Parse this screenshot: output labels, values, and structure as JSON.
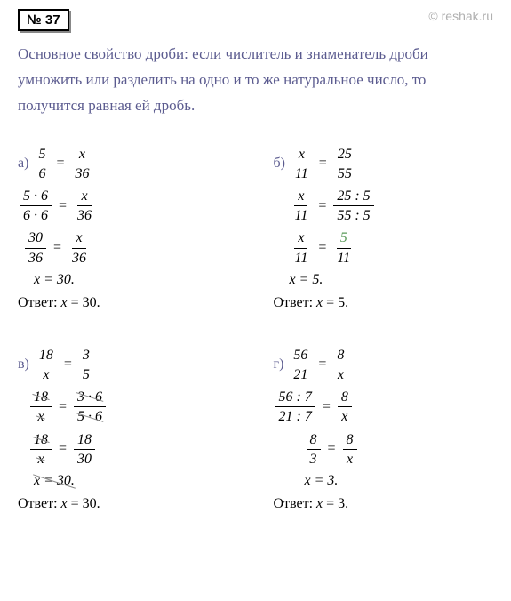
{
  "header": {
    "problem_number": "№ 37",
    "watermark": "© reshak.ru"
  },
  "description": "Основное свойство дроби: если числитель и знаменатель дроби умножить или разделить на одно и то же натуральное число, то получится равная ей дробь.",
  "problems": {
    "a": {
      "label": "а)",
      "eq1": {
        "l_num": "5",
        "l_den": "6",
        "r_num": "x",
        "r_den": "36"
      },
      "eq2": {
        "l_num": "5 · 6",
        "l_den": "6 · 6",
        "r_num": "x",
        "r_den": "36"
      },
      "eq3": {
        "l_num": "30",
        "l_den": "36",
        "r_num": "x",
        "r_den": "36"
      },
      "eq4": "x = 30.",
      "answer": "Ответ: x = 30."
    },
    "b": {
      "label": "б)",
      "eq1": {
        "l_num": "x",
        "l_den": "11",
        "r_num": "25",
        "r_den": "55"
      },
      "eq2": {
        "l_num": "x",
        "l_den": "11",
        "r_num": "25 : 5",
        "r_den": "55 : 5"
      },
      "eq3": {
        "l_num": "x",
        "l_den": "11",
        "r_num": "5",
        "r_den": "11"
      },
      "eq4": "x = 5.",
      "answer": "Ответ: x = 5."
    },
    "c": {
      "label": "в)",
      "eq1": {
        "l_num": "18",
        "l_den": "x",
        "r_num": "3",
        "r_den": "5"
      },
      "eq2": {
        "l_num": "18",
        "l_den": "x",
        "r_num": "3 · 6",
        "r_den": "5 · 6"
      },
      "eq3": {
        "l_num": "18",
        "l_den": "x",
        "r_num": "18",
        "r_den": "30"
      },
      "eq4": "x = 30.",
      "answer": "Ответ: x = 30."
    },
    "d": {
      "label": "г)",
      "eq1": {
        "l_num": "56",
        "l_den": "21",
        "r_num": "8",
        "r_den": "x"
      },
      "eq2": {
        "l_num": "56 : 7",
        "l_den": "21 : 7",
        "r_num": "8",
        "r_den": "x"
      },
      "eq3": {
        "l_num": "8",
        "l_den": "3",
        "r_num": "8",
        "r_den": "x"
      },
      "eq4": "x = 3.",
      "answer": "Ответ: x = 3."
    }
  },
  "colors": {
    "text_purple": "#5b5b8f",
    "text_black": "#000000",
    "highlight_green": "#5b9b5b",
    "watermark_gray": "#b0b0b0",
    "background": "#ffffff"
  }
}
